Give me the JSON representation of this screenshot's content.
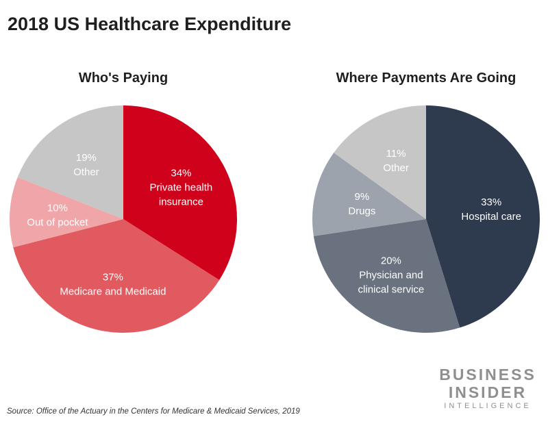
{
  "title": "2018 US Healthcare Expenditure",
  "source": "Source: Office of the Actuary in the Centers for Medicare & Medicaid Services, 2019",
  "logo": {
    "line1": "BUSINESS",
    "line2": "INSIDER",
    "line3": "INTELLIGENCE"
  },
  "chart_data": [
    {
      "type": "pie",
      "title": "Who's Paying",
      "unit": "%",
      "slices": [
        {
          "label": "Private health insurance",
          "value": 34,
          "display": "34%",
          "lines": [
            "Private health",
            "insurance"
          ],
          "color": "#d0021b"
        },
        {
          "label": "Medicare and Medicaid",
          "value": 37,
          "display": "37%",
          "lines": [
            "Medicare and Medicaid"
          ],
          "color": "#e05a60"
        },
        {
          "label": "Out of pocket",
          "value": 10,
          "display": "10%",
          "lines": [
            "Out of pocket"
          ],
          "color": "#f0a5a9"
        },
        {
          "label": "Other",
          "value": 19,
          "display": "19%",
          "lines": [
            "Other"
          ],
          "color": "#c6c6c6"
        }
      ]
    },
    {
      "type": "pie",
      "title": "Where Payments Are Going",
      "unit": "%",
      "slices": [
        {
          "label": "Hospital care",
          "value": 33,
          "display": "33%",
          "lines": [
            "Hospital care"
          ],
          "color": "#2e3a4e"
        },
        {
          "label": "Physician and clinical service",
          "value": 20,
          "display": "20%",
          "lines": [
            "Physician and",
            "clinical service"
          ],
          "color": "#6a7280"
        },
        {
          "label": "Drugs",
          "value": 9,
          "display": "9%",
          "lines": [
            "Drugs"
          ],
          "color": "#9ca3ad"
        },
        {
          "label": "Other",
          "value": 11,
          "display": "11%",
          "lines": [
            "Other"
          ],
          "color": "#c6c6c6"
        }
      ]
    }
  ]
}
